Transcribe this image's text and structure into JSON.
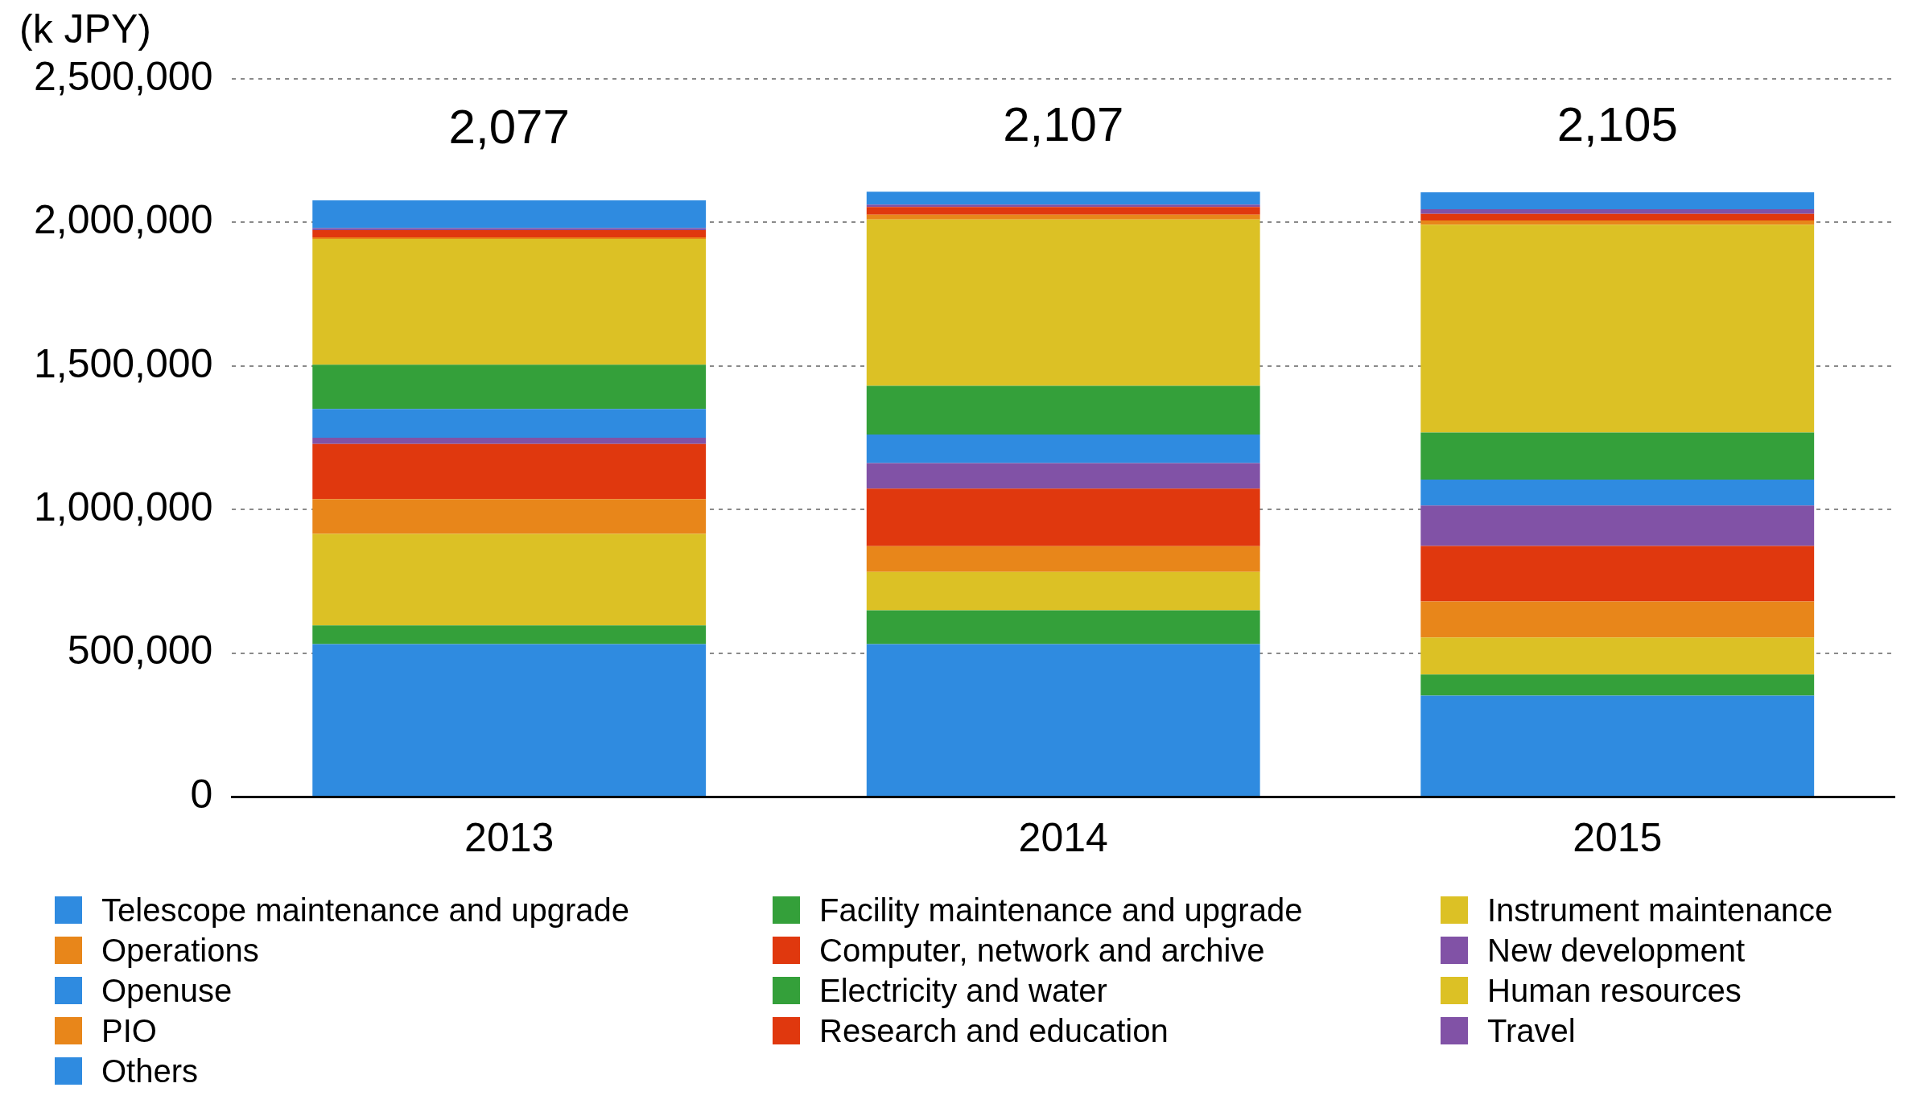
{
  "chart_data": {
    "type": "bar",
    "stacked": true,
    "ylabel": "(k JPY)",
    "categories": [
      "2013",
      "2014",
      "2015"
    ],
    "ylim": [
      0,
      2500000
    ],
    "yticks": [
      0,
      {
        "value": 500000,
        "label": "500,000"
      },
      {
        "value": 1000000,
        "label": "1,000,000"
      },
      {
        "value": 1500000,
        "label": "1,500,000"
      },
      {
        "value": 2000000,
        "label": "2,000,000"
      },
      {
        "value": 2500000,
        "label": "2,500,000"
      }
    ],
    "grid": "y",
    "legend": "bottom",
    "annotations": [
      {
        "text": "2,077",
        "x": "2013",
        "y": 2077000
      },
      {
        "text": "2,107",
        "x": "2014",
        "y": 2107000
      },
      {
        "text": "2,105",
        "x": "2015",
        "y": 2105000
      }
    ],
    "series": [
      {
        "name": "Telescope maintenance and upgrade",
        "color": "#2f8be0",
        "values": [
          531000,
          531000,
          352000
        ]
      },
      {
        "name": "Facility maintenance and upgrade",
        "color": "#34a03a",
        "values": [
          65000,
          118000,
          73000
        ]
      },
      {
        "name": "Instrument maintenance",
        "color": "#dcc125",
        "values": [
          319000,
          134000,
          129000
        ]
      },
      {
        "name": "Operations",
        "color": "#e8861a",
        "values": [
          121000,
          89000,
          126000
        ]
      },
      {
        "name": "Computer, network and archive",
        "color": "#e0380e",
        "values": [
          192000,
          201000,
          193000
        ]
      },
      {
        "name": "New development",
        "color": "#8152a6",
        "values": [
          22000,
          89000,
          141000
        ]
      },
      {
        "name": "Openuse",
        "color": "#2f8be0",
        "values": [
          100000,
          99000,
          90000
        ]
      },
      {
        "name": "Electricity and water",
        "color": "#34a03a",
        "values": [
          154000,
          170000,
          164000
        ]
      },
      {
        "name": "Human resources",
        "color": "#dcc125",
        "values": [
          438000,
          579000,
          724000
        ]
      },
      {
        "name": "PIO",
        "color": "#e8861a",
        "values": [
          6000,
          17000,
          15000
        ]
      },
      {
        "name": "Research and education",
        "color": "#e0380e",
        "values": [
          25000,
          27000,
          23000
        ]
      },
      {
        "name": "Travel",
        "color": "#8152a6",
        "values": [
          7000,
          8000,
          16000
        ]
      },
      {
        "name": "Others",
        "color": "#2f8be0",
        "values": [
          97000,
          45000,
          59000
        ]
      }
    ]
  }
}
